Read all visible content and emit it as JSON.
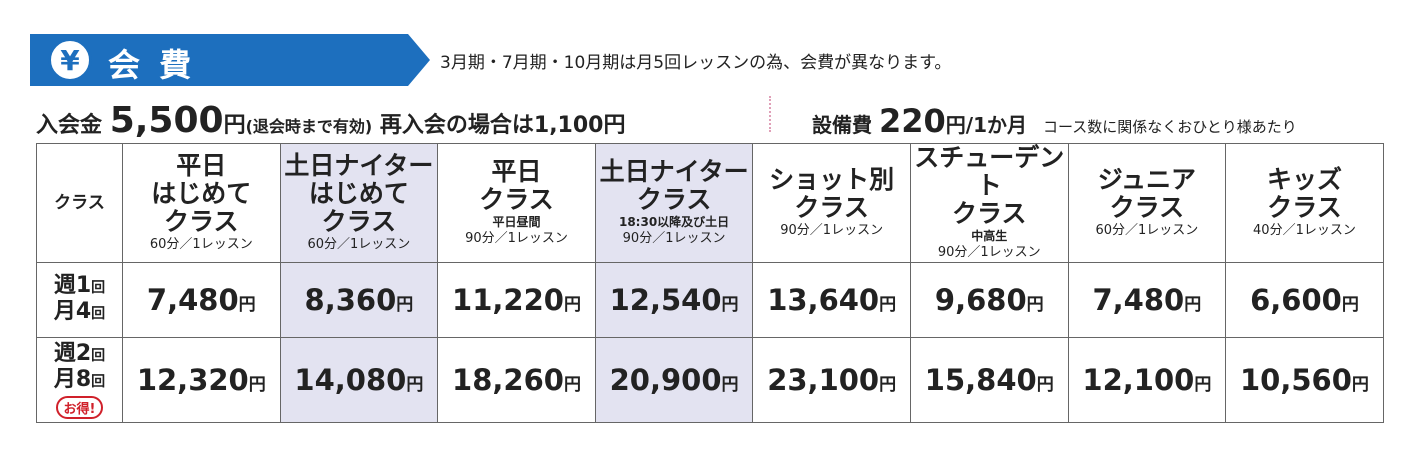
{
  "header": {
    "icon": "¥",
    "title": "会 費",
    "note": "3月期・7月期・10月期は月5回レッスンの為、会費が異なります。"
  },
  "fees": {
    "entry_label": "入会金",
    "entry_amount": "5,500",
    "entry_unit": "円",
    "entry_note": "(退会時まで有効)",
    "reentry": "再入会の場合は1,100円",
    "equipment_label": "設備費",
    "equipment_amount": "220",
    "equipment_unit": "円/1か月",
    "equipment_note": "コース数に関係なくおひとり様あたり"
  },
  "table": {
    "corner": "クラス",
    "unit": "円",
    "columns": [
      {
        "name": [
          "平日",
          "はじめて",
          "クラス"
        ],
        "duration": "60分／1レッスン"
      },
      {
        "name": [
          "土日ナイター",
          "はじめて",
          "クラス"
        ],
        "duration": "60分／1レッスン",
        "highlight": true
      },
      {
        "name": [
          "平日",
          "クラス"
        ],
        "note": "平日昼間",
        "duration": "90分／1レッスン"
      },
      {
        "name": [
          "土日ナイター",
          "クラス"
        ],
        "note": "18:30以降及び土日",
        "duration": "90分／1レッスン",
        "highlight": true
      },
      {
        "name": [
          "ショット別",
          "クラス"
        ],
        "duration": "90分／1レッスン"
      },
      {
        "name": [
          "スチューデント",
          "クラス"
        ],
        "note": "中高生",
        "duration": "90分／1レッスン"
      },
      {
        "name": [
          "ジュニア",
          "クラス"
        ],
        "duration": "60分／1レッスン"
      },
      {
        "name": [
          "キッズ",
          "クラス"
        ],
        "duration": "40分／1レッスン"
      }
    ],
    "rows": [
      {
        "label": [
          {
            "main": "週1",
            "unit": "回"
          },
          {
            "main": "月4",
            "unit": "回"
          }
        ],
        "values": [
          "7,480",
          "8,360",
          "11,220",
          "12,540",
          "13,640",
          "9,680",
          "7,480",
          "6,600"
        ]
      },
      {
        "label": [
          {
            "main": "週2",
            "unit": "回"
          },
          {
            "main": "月8",
            "unit": "回"
          }
        ],
        "badge": "お得!",
        "values": [
          "12,320",
          "14,080",
          "18,260",
          "20,900",
          "23,100",
          "15,840",
          "12,100",
          "10,560"
        ]
      }
    ]
  }
}
